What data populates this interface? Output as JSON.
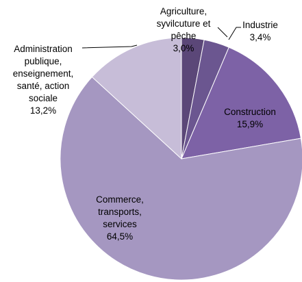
{
  "chart_data": {
    "type": "pie",
    "categories": [
      "Agriculture, syvilcuture et pêche",
      "Industrie",
      "Construction",
      "Commerce, transports, services",
      "Administration publique, enseignement, santé, action sociale"
    ],
    "values": [
      3.0,
      3.4,
      15.9,
      64.5,
      13.2
    ],
    "value_labels": [
      "3,0%",
      "3,4%",
      "15,9%",
      "64,5%",
      "13,2%"
    ],
    "colors": [
      "#5b4778",
      "#6b5690",
      "#7d62a6",
      "#a597c1",
      "#c7bdd8"
    ]
  }
}
